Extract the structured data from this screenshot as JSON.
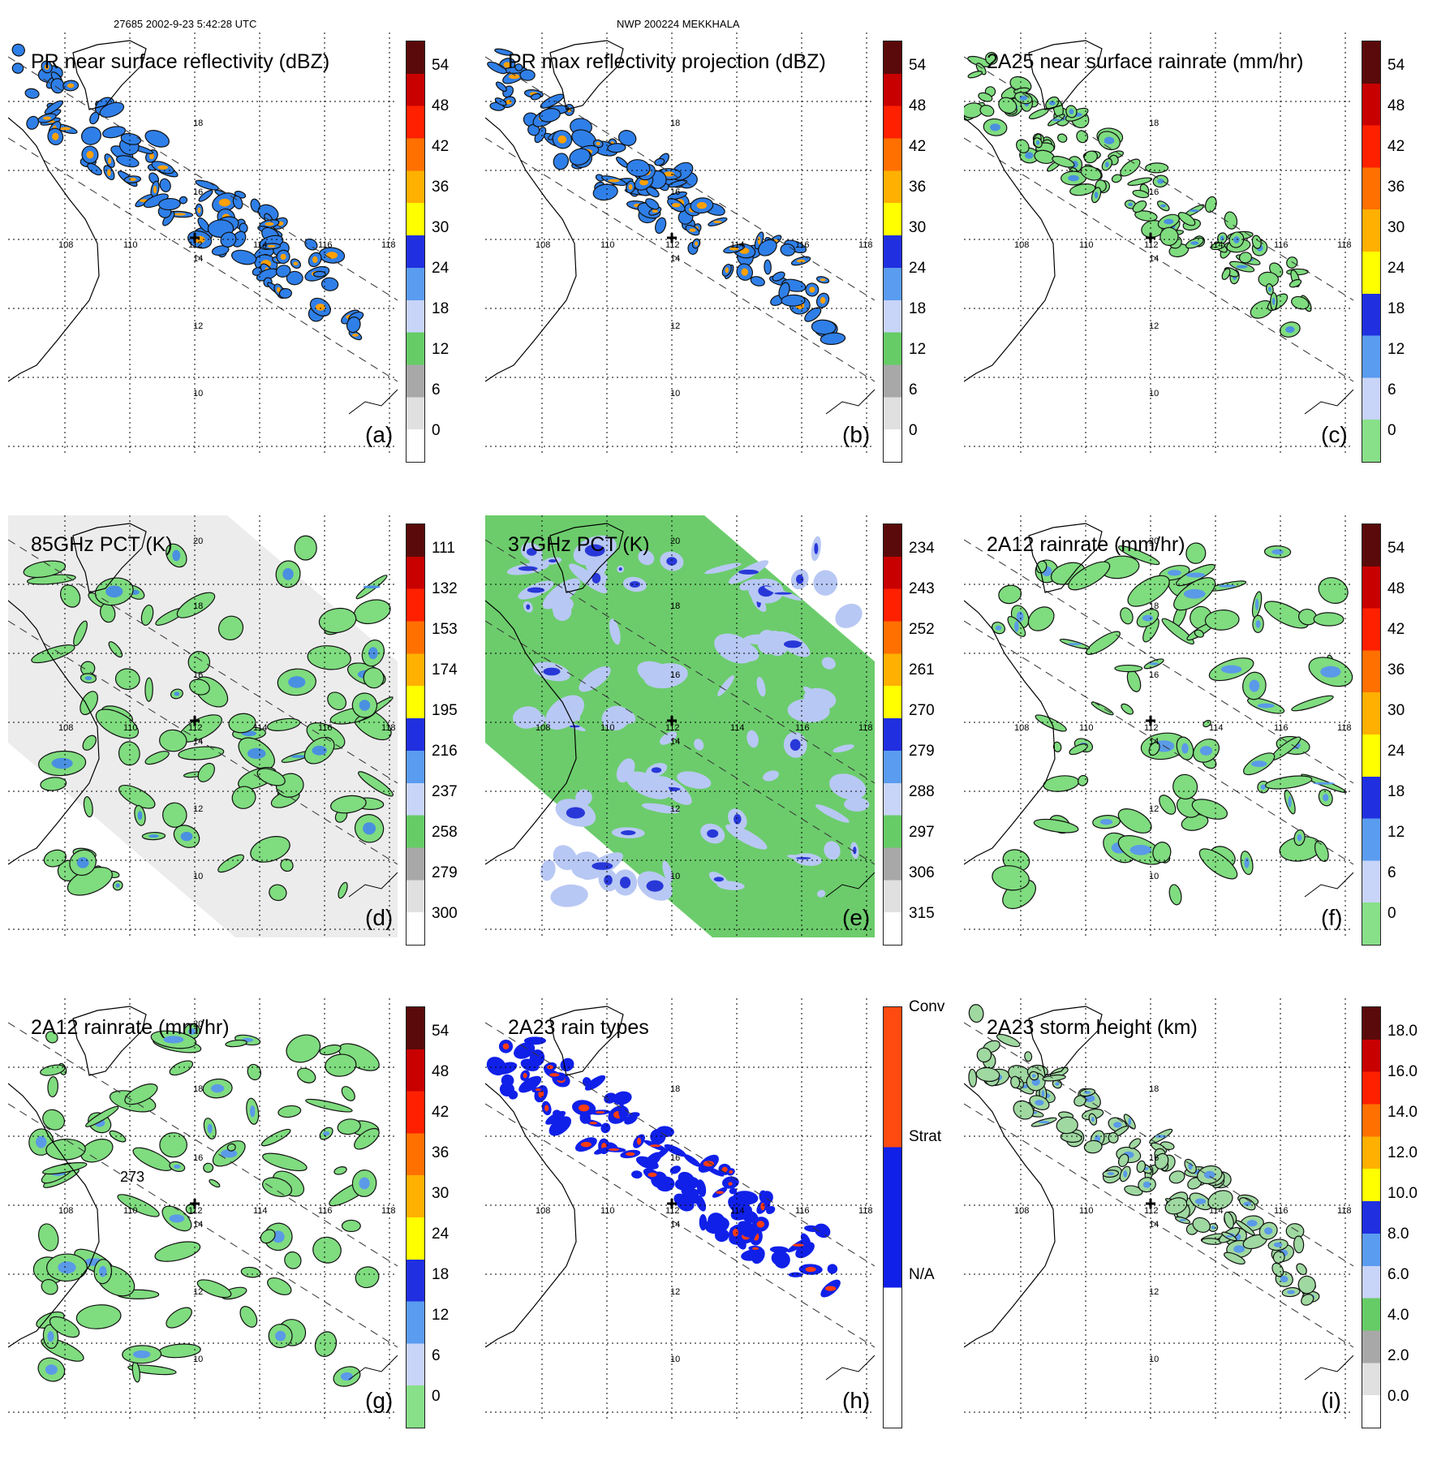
{
  "header": {
    "orbit_time": "27685 2002-9-23 5:42:28 UTC",
    "storm": "NWP 200224 MEKKHALA"
  },
  "lat_labels": [
    "20",
    "18",
    "16",
    "14",
    "12",
    "10"
  ],
  "lon_labels": [
    "108",
    "110",
    "112",
    "114",
    "116",
    "118"
  ],
  "panels": [
    {
      "id": "a",
      "title": "PR near surface reflectivity (dBZ)",
      "label": "(a)",
      "swath": "pr",
      "bg": "none",
      "fill": "#2f7fe8",
      "fill2": "#ffa000",
      "ticks": [
        "54",
        "48",
        "42",
        "36",
        "30",
        "24",
        "18",
        "12",
        "6",
        "0"
      ],
      "scheme": "dbz"
    },
    {
      "id": "b",
      "title": "PR max reflectivity projection (dBZ)",
      "label": "(b)",
      "swath": "pr",
      "bg": "none",
      "fill": "#2f7fe8",
      "fill2": "#ffa000",
      "ticks": [
        "54",
        "48",
        "42",
        "36",
        "30",
        "24",
        "18",
        "12",
        "6",
        "0"
      ],
      "scheme": "dbz"
    },
    {
      "id": "c",
      "title": "2A25 near surface rainrate (mm/hr)",
      "label": "(c)",
      "swath": "pr",
      "bg": "none",
      "fill": "#7fdc7f",
      "fill2": "#4a90e0",
      "ticks": [
        "54",
        "48",
        "42",
        "36",
        "30",
        "24",
        "18",
        "12",
        "6",
        "0"
      ],
      "scheme": "rain"
    },
    {
      "id": "d",
      "title": "85GHz PCT (K)",
      "label": "(d)",
      "swath": "tmi",
      "bg": "#ececec",
      "fill": "#7fdc7f",
      "fill2": "#4a90e0",
      "ticks": [
        "111",
        "132",
        "153",
        "174",
        "195",
        "216",
        "237",
        "258",
        "279",
        "300"
      ],
      "scheme": "pct"
    },
    {
      "id": "e",
      "title": "37GHz PCT (K)",
      "label": "(e)",
      "swath": "tmi",
      "bg": "#6ccc6c",
      "fill": "#b8c8f4",
      "fill2": "#2838d8",
      "ticks": [
        "234",
        "243",
        "252",
        "261",
        "270",
        "279",
        "288",
        "297",
        "306",
        "315"
      ],
      "scheme": "pct"
    },
    {
      "id": "f",
      "title": "2A12 rainrate (mm/hr)",
      "label": "(f)",
      "swath": "tmi",
      "bg": "none",
      "fill": "#7fdc7f",
      "fill2": "#5a9ae8",
      "ticks": [
        "54",
        "48",
        "42",
        "36",
        "30",
        "24",
        "18",
        "12",
        "6",
        "0"
      ],
      "scheme": "rain"
    },
    {
      "id": "g",
      "title": "2A12 rainrate (mm/hr)",
      "label": "(g)",
      "swath": "tmi",
      "bg": "none",
      "fill": "#7fdc7f",
      "fill2": "#5a9ae8",
      "ticks": [
        "54",
        "48",
        "42",
        "36",
        "30",
        "24",
        "18",
        "12",
        "6",
        "0"
      ],
      "scheme": "rain",
      "annotation": "273"
    },
    {
      "id": "h",
      "title": "2A23 rain types",
      "label": "(h)",
      "swath": "pr",
      "bg": "none",
      "fill": "#1020e8",
      "fill2": "#ff3c10",
      "ticks": [
        "Conv",
        "Strat",
        "N/A"
      ],
      "scheme": "types"
    },
    {
      "id": "i",
      "title": "2A23 storm height (km)",
      "label": "(i)",
      "swath": "pr",
      "bg": "none",
      "fill": "#9fd8a0",
      "fill2": "#5a9ae8",
      "ticks": [
        "18.0",
        "16.0",
        "14.0",
        "12.0",
        "10.0",
        "8.0",
        "6.0",
        "4.0",
        "2.0",
        "0.0"
      ],
      "scheme": "height"
    }
  ],
  "colors": {
    "dbz": [
      "#ffffff",
      "#e0e0e0",
      "#a8a8a8",
      "#66cc66",
      "#c8d4f8",
      "#5a9cf0",
      "#2030e0",
      "#ffff00",
      "#ffb000",
      "#ff7000",
      "#ff2000",
      "#c80000",
      "#5a0a0a"
    ],
    "rain": [
      "#88e088",
      "#c8d4f8",
      "#5a9cf0",
      "#2030e0",
      "#ffff00",
      "#ffb000",
      "#ff7000",
      "#ff2000",
      "#c80000",
      "#5a0a0a"
    ],
    "pct": [
      "#ffffff",
      "#e0e0e0",
      "#a8a8a8",
      "#66cc66",
      "#c8d4f8",
      "#5a9cf0",
      "#2030e0",
      "#ffff00",
      "#ffb000",
      "#ff7000",
      "#ff2000",
      "#c80000",
      "#5a0a0a"
    ],
    "height": [
      "#ffffff",
      "#e0e0e0",
      "#a8a8a8",
      "#66cc66",
      "#c8d4f8",
      "#5a9cf0",
      "#2030e0",
      "#ffff00",
      "#ffb000",
      "#ff7000",
      "#ff2000",
      "#c80000",
      "#5a0a0a"
    ],
    "types": [
      "#ffffff",
      "#1020e8",
      "#ff4a10"
    ]
  }
}
